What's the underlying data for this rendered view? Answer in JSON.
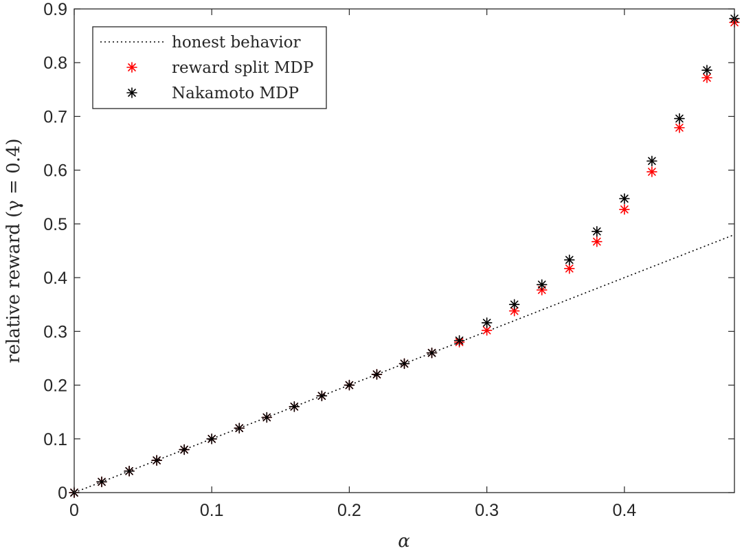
{
  "chart_data": {
    "type": "scatter",
    "xlabel": "α",
    "ylabel": "relative reward (γ = 0.4)",
    "xlim": [
      0,
      0.48
    ],
    "ylim": [
      0,
      0.9
    ],
    "xticks": [
      "0",
      "0.1",
      "0.2",
      "0.3",
      "0.4"
    ],
    "yticks": [
      "0",
      "0.1",
      "0.2",
      "0.3",
      "0.4",
      "0.5",
      "0.6",
      "0.7",
      "0.8",
      "0.9"
    ],
    "grid": false,
    "legend_position": "top-left",
    "x": [
      0,
      0.02,
      0.04,
      0.06,
      0.08,
      0.1,
      0.12,
      0.14,
      0.16,
      0.18,
      0.2,
      0.22,
      0.24,
      0.26,
      0.28,
      0.3,
      0.32,
      0.34,
      0.36,
      0.38,
      0.4,
      0.42,
      0.44,
      0.46,
      0.48
    ],
    "series": [
      {
        "name": "honest behavior",
        "style": "dotted-line",
        "color": "#000000",
        "x": [
          0,
          0.48
        ],
        "values": [
          0,
          0.48
        ]
      },
      {
        "name": "reward split MDP",
        "style": "asterisk",
        "color": "#ff0000",
        "values": [
          0,
          0.02,
          0.04,
          0.06,
          0.08,
          0.1,
          0.12,
          0.14,
          0.16,
          0.18,
          0.2,
          0.22,
          0.24,
          0.26,
          0.28,
          0.302,
          0.338,
          0.377,
          0.417,
          0.467,
          0.527,
          0.597,
          0.679,
          0.772,
          0.875
        ]
      },
      {
        "name": "Nakamoto MDP",
        "style": "asterisk",
        "color": "#000000",
        "values": [
          0,
          0.02,
          0.04,
          0.06,
          0.08,
          0.1,
          0.12,
          0.14,
          0.16,
          0.18,
          0.2,
          0.22,
          0.24,
          0.26,
          0.283,
          0.316,
          0.35,
          0.387,
          0.433,
          0.486,
          0.547,
          0.617,
          0.696,
          0.786,
          0.882
        ]
      }
    ]
  }
}
